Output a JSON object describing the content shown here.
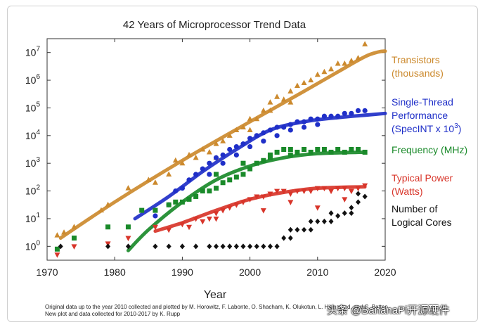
{
  "chart_data": {
    "type": "scatter",
    "title": "42 Years of Microprocessor Trend Data",
    "xlabel": "Year",
    "ylabel": "",
    "xlim": [
      1970,
      2020
    ],
    "ylim_log10": [
      -0.5,
      7.5
    ],
    "x_ticks": [
      "1970",
      "1980",
      "1990",
      "2000",
      "2010",
      "2020"
    ],
    "x_tick_values": [
      1970,
      1980,
      1990,
      2000,
      2010,
      2020
    ],
    "y_ticks": [
      {
        "base": "10",
        "exp": "0",
        "log": 0
      },
      {
        "base": "10",
        "exp": "1",
        "log": 1
      },
      {
        "base": "10",
        "exp": "2",
        "log": 2
      },
      {
        "base": "10",
        "exp": "3",
        "log": 3
      },
      {
        "base": "10",
        "exp": "4",
        "log": 4
      },
      {
        "base": "10",
        "exp": "5",
        "log": 5
      },
      {
        "base": "10",
        "exp": "6",
        "log": 6
      },
      {
        "base": "10",
        "exp": "7",
        "log": 7
      }
    ],
    "series": [
      {
        "name": "Transistors (thousands)",
        "legend_lines": [
          "Transistors",
          "(thousands)"
        ],
        "color": "#cc8a2e",
        "marker": "triangle-up",
        "points": [
          [
            1971.5,
            0.4
          ],
          [
            1972.5,
            0.5
          ],
          [
            1974,
            0.7
          ],
          [
            1978,
            1.3
          ],
          [
            1979,
            1.5
          ],
          [
            1982,
            2.1
          ],
          [
            1985,
            2.4
          ],
          [
            1986,
            2.3
          ],
          [
            1988,
            2.6
          ],
          [
            1989,
            3.1
          ],
          [
            1990,
            3.0
          ],
          [
            1991,
            3.3
          ],
          [
            1993,
            3.5
          ],
          [
            1994,
            3.4
          ],
          [
            1995,
            3.7
          ],
          [
            1996,
            3.8
          ],
          [
            1997,
            4.0
          ],
          [
            1998,
            4.2
          ],
          [
            1999,
            4.3
          ],
          [
            2000,
            4.6
          ],
          [
            2001,
            4.6
          ],
          [
            2002,
            4.9
          ],
          [
            2003,
            5.2
          ],
          [
            2004,
            5.4
          ],
          [
            2005,
            5.3
          ],
          [
            2006,
            5.6
          ],
          [
            2007,
            5.8
          ],
          [
            2008,
            5.9
          ],
          [
            2009,
            6.0
          ],
          [
            2010,
            6.2
          ],
          [
            2011,
            6.3
          ],
          [
            2012,
            6.4
          ],
          [
            2013,
            6.6
          ],
          [
            2014,
            6.6
          ],
          [
            2015,
            6.7
          ],
          [
            2016,
            6.8
          ],
          [
            2017,
            7.3
          ],
          [
            1992,
            3.2
          ],
          [
            1995,
            3.2
          ],
          [
            2000,
            4.2
          ],
          [
            2003,
            4.9
          ],
          [
            2006,
            5.2
          ]
        ],
        "trend": [
          [
            1972,
            0.3
          ],
          [
            1980,
            1.6
          ],
          [
            1990,
            3.1
          ],
          [
            2000,
            4.5
          ],
          [
            2008,
            5.6
          ],
          [
            2013,
            6.3
          ],
          [
            2017,
            6.85
          ],
          [
            2019,
            7.02
          ],
          [
            2020,
            7.05
          ]
        ]
      },
      {
        "name": "Single-Thread Performance (SpecINT x 10^3)",
        "legend_lines": [
          "Single-Thread",
          "Performance",
          "(SpecINT x 10"
        ],
        "legend_sup": "3",
        "legend_close": ")",
        "color": "#1f2fc8",
        "marker": "circle",
        "points": [
          [
            1986,
            1.1
          ],
          [
            1988,
            1.5
          ],
          [
            1989,
            2.0
          ],
          [
            1990,
            2.1
          ],
          [
            1991,
            2.4
          ],
          [
            1992,
            2.6
          ],
          [
            1993,
            2.8
          ],
          [
            1994,
            3.0
          ],
          [
            1995,
            3.2
          ],
          [
            1996,
            3.3
          ],
          [
            1997,
            3.5
          ],
          [
            1998,
            3.6
          ],
          [
            1999,
            3.7
          ],
          [
            2000,
            3.9
          ],
          [
            2001,
            4.0
          ],
          [
            2002,
            4.1
          ],
          [
            2003,
            4.2
          ],
          [
            2004,
            4.3
          ],
          [
            2005,
            4.3
          ],
          [
            2006,
            4.4
          ],
          [
            2007,
            4.5
          ],
          [
            2008,
            4.5
          ],
          [
            2009,
            4.6
          ],
          [
            2010,
            4.6
          ],
          [
            2011,
            4.7
          ],
          [
            2012,
            4.7
          ],
          [
            2013,
            4.7
          ],
          [
            2014,
            4.8
          ],
          [
            2015,
            4.8
          ],
          [
            2016,
            4.9
          ],
          [
            2017,
            4.9
          ],
          [
            1994,
            2.6
          ],
          [
            1996,
            3.0
          ],
          [
            1998,
            3.3
          ],
          [
            2000,
            3.6
          ],
          [
            2002,
            3.8
          ],
          [
            2004,
            4.0
          ],
          [
            2006,
            4.2
          ],
          [
            2008,
            4.3
          ],
          [
            2010,
            4.4
          ]
        ],
        "trend": [
          [
            1983,
            1.0
          ],
          [
            1988,
            1.8
          ],
          [
            1993,
            2.7
          ],
          [
            1998,
            3.5
          ],
          [
            2003,
            4.2
          ],
          [
            2008,
            4.5
          ],
          [
            2013,
            4.65
          ],
          [
            2020,
            4.8
          ]
        ]
      },
      {
        "name": "Frequency (MHz)",
        "legend_lines": [
          "Frequency (MHz)"
        ],
        "color": "#1a8a2a",
        "marker": "square",
        "points": [
          [
            1971.5,
            -0.1
          ],
          [
            1974,
            0.3
          ],
          [
            1979,
            0.7
          ],
          [
            1982,
            0.7
          ],
          [
            1984,
            1.3
          ],
          [
            1986,
            1.3
          ],
          [
            1988,
            1.5
          ],
          [
            1989,
            1.6
          ],
          [
            1990,
            1.6
          ],
          [
            1991,
            1.7
          ],
          [
            1992,
            1.8
          ],
          [
            1993,
            2.0
          ],
          [
            1994,
            2.0
          ],
          [
            1995,
            2.1
          ],
          [
            1996,
            2.3
          ],
          [
            1997,
            2.4
          ],
          [
            1998,
            2.5
          ],
          [
            1999,
            2.6
          ],
          [
            2000,
            2.8
          ],
          [
            2001,
            3.0
          ],
          [
            2002,
            3.1
          ],
          [
            2003,
            3.3
          ],
          [
            2004,
            3.4
          ],
          [
            2005,
            3.5
          ],
          [
            2006,
            3.3
          ],
          [
            2007,
            3.4
          ],
          [
            2008,
            3.5
          ],
          [
            2009,
            3.4
          ],
          [
            2010,
            3.5
          ],
          [
            2011,
            3.5
          ],
          [
            2012,
            3.4
          ],
          [
            2013,
            3.5
          ],
          [
            2014,
            3.4
          ],
          [
            2015,
            3.5
          ],
          [
            2016,
            3.5
          ],
          [
            2017,
            3.4
          ],
          [
            1995,
            2.6
          ],
          [
            1999,
            3.0
          ],
          [
            2003,
            3.2
          ],
          [
            2006,
            3.5
          ]
        ],
        "trend": [
          [
            1982,
            -0.15
          ],
          [
            1985,
            0.6
          ],
          [
            1990,
            1.6
          ],
          [
            1995,
            2.4
          ],
          [
            2000,
            2.9
          ],
          [
            2005,
            3.2
          ],
          [
            2010,
            3.35
          ],
          [
            2017,
            3.4
          ]
        ]
      },
      {
        "name": "Typical Power (Watts)",
        "legend_lines": [
          "Typical Power",
          "(Watts)"
        ],
        "color": "#d8352a",
        "marker": "triangle-down",
        "points": [
          [
            1971.5,
            -0.3
          ],
          [
            1974,
            0.0
          ],
          [
            1979,
            0.1
          ],
          [
            1982,
            0.3
          ],
          [
            1986,
            0.7
          ],
          [
            1988,
            0.6
          ],
          [
            1990,
            0.8
          ],
          [
            1991,
            0.7
          ],
          [
            1992,
            1.0
          ],
          [
            1993,
            0.9
          ],
          [
            1994,
            1.0
          ],
          [
            1995,
            1.2
          ],
          [
            1996,
            1.3
          ],
          [
            1997,
            1.4
          ],
          [
            1998,
            1.5
          ],
          [
            1999,
            1.6
          ],
          [
            2000,
            1.7
          ],
          [
            2001,
            1.8
          ],
          [
            2002,
            1.8
          ],
          [
            2003,
            1.9
          ],
          [
            2004,
            2.0
          ],
          [
            2005,
            2.0
          ],
          [
            2006,
            1.9
          ],
          [
            2007,
            2.0
          ],
          [
            2008,
            2.0
          ],
          [
            2009,
            2.0
          ],
          [
            2010,
            2.1
          ],
          [
            2011,
            2.1
          ],
          [
            2012,
            2.0
          ],
          [
            2013,
            2.1
          ],
          [
            2014,
            2.1
          ],
          [
            2015,
            2.0
          ],
          [
            2016,
            2.1
          ],
          [
            2017,
            2.2
          ],
          [
            1995,
            1.0
          ],
          [
            2002,
            1.3
          ],
          [
            2006,
            1.6
          ],
          [
            2010,
            1.4
          ],
          [
            2014,
            1.7
          ]
        ],
        "trend": [
          [
            1986,
            0.55
          ],
          [
            1990,
            0.85
          ],
          [
            1995,
            1.3
          ],
          [
            2000,
            1.7
          ],
          [
            2005,
            1.95
          ],
          [
            2010,
            2.1
          ],
          [
            2017,
            2.15
          ]
        ]
      },
      {
        "name": "Number of Logical Cores",
        "legend_lines": [
          "Number of",
          "Logical Cores"
        ],
        "color": "#111111",
        "marker": "diamond",
        "points": [
          [
            1972,
            0
          ],
          [
            1979,
            0
          ],
          [
            1982,
            0
          ],
          [
            1986,
            0
          ],
          [
            1988,
            0
          ],
          [
            1990,
            0
          ],
          [
            1992,
            0
          ],
          [
            1994,
            0
          ],
          [
            1995,
            0
          ],
          [
            1996,
            0
          ],
          [
            1997,
            0
          ],
          [
            1998,
            0
          ],
          [
            1999,
            0
          ],
          [
            2000,
            0
          ],
          [
            2001,
            0
          ],
          [
            2002,
            0
          ],
          [
            2003,
            0
          ],
          [
            2004,
            0
          ],
          [
            2005,
            0.3
          ],
          [
            2006,
            0.3
          ],
          [
            2007,
            0.6
          ],
          [
            2008,
            0.6
          ],
          [
            2009,
            0.6
          ],
          [
            2010,
            0.9
          ],
          [
            2011,
            0.9
          ],
          [
            2012,
            0.9
          ],
          [
            2013,
            1.1
          ],
          [
            2014,
            1.2
          ],
          [
            2015,
            1.4
          ],
          [
            2016,
            1.6
          ],
          [
            2017,
            1.8
          ],
          [
            2006,
            0.6
          ],
          [
            2009,
            0.9
          ],
          [
            2012,
            1.2
          ],
          [
            2015,
            1.2
          ],
          [
            2016,
            1.9
          ]
        ]
      }
    ]
  },
  "footnote": {
    "line1": "Original data up to the year 2010 collected and plotted by M. Horowitz, F. Labonte, O. Shacham, K. Olukotun, L. Hammond, and C. Batten",
    "line2": "New plot and data collected for 2010-2017 by K. Rupp"
  },
  "watermark": "头条 @BananaPi开源硬件"
}
